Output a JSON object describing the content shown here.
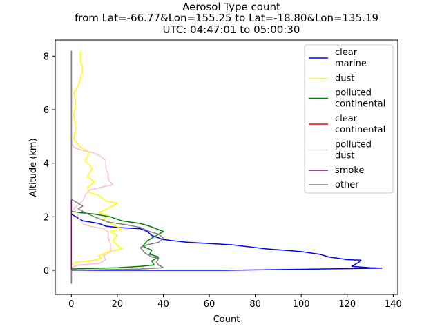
{
  "chart_data": {
    "type": "line",
    "title_lines": [
      "Aerosol Type count",
      "from Lat=-66.77&Lon=155.25 to Lat=-18.80&Lon=135.19",
      "UTC: 04:47:01 to 05:00:30"
    ],
    "xlabel": "Count",
    "ylabel": "Altitude (km)",
    "xlim": [
      -7,
      142
    ],
    "ylim": [
      -0.9,
      8.6
    ],
    "xticks": [
      0,
      20,
      40,
      60,
      80,
      100,
      120,
      140
    ],
    "yticks": [
      0,
      2,
      4,
      6,
      8
    ],
    "grid": false,
    "legend_position": "top-right",
    "series": [
      {
        "name": "clear\nmarine",
        "color": "#0000ff",
        "points": [
          [
            0,
            -0.5
          ],
          [
            0,
            0.0
          ],
          [
            67,
            0.0
          ],
          [
            135,
            0.08
          ],
          [
            130,
            0.1
          ],
          [
            122,
            0.15
          ],
          [
            125,
            0.3
          ],
          [
            126,
            0.38
          ],
          [
            120,
            0.4
          ],
          [
            112,
            0.5
          ],
          [
            108,
            0.6
          ],
          [
            100,
            0.7
          ],
          [
            85,
            0.8
          ],
          [
            70,
            0.95
          ],
          [
            50,
            1.05
          ],
          [
            40,
            1.15
          ],
          [
            35,
            1.3
          ],
          [
            33,
            1.45
          ],
          [
            30,
            1.55
          ],
          [
            20,
            1.6
          ],
          [
            15,
            1.65
          ],
          [
            12,
            1.75
          ],
          [
            5,
            1.85
          ],
          [
            2,
            2.0
          ],
          [
            0,
            2.1
          ],
          [
            0,
            8.2
          ]
        ]
      },
      {
        "name": "dust",
        "color": "#ffff00",
        "points": [
          [
            0,
            -0.5
          ],
          [
            0,
            0.2
          ],
          [
            2,
            0.3
          ],
          [
            8,
            0.35
          ],
          [
            13,
            0.45
          ],
          [
            12,
            0.55
          ],
          [
            16,
            0.7
          ],
          [
            22,
            0.8
          ],
          [
            20,
            0.95
          ],
          [
            18,
            1.1
          ],
          [
            20,
            1.3
          ],
          [
            17,
            1.45
          ],
          [
            22,
            1.55
          ],
          [
            17,
            1.75
          ],
          [
            14,
            1.9
          ],
          [
            16,
            2.05
          ],
          [
            12,
            2.15
          ],
          [
            20,
            2.5
          ],
          [
            15,
            2.6
          ],
          [
            12,
            2.8
          ],
          [
            8,
            2.9
          ],
          [
            7,
            3.1
          ],
          [
            10,
            3.3
          ],
          [
            7,
            3.5
          ],
          [
            9,
            3.8
          ],
          [
            6,
            4.1
          ],
          [
            8,
            4.4
          ],
          [
            4,
            4.6
          ],
          [
            1,
            4.9
          ],
          [
            2,
            5.3
          ],
          [
            1,
            5.8
          ],
          [
            2,
            6.3
          ],
          [
            1,
            6.6
          ],
          [
            3,
            6.9
          ],
          [
            4,
            7.2
          ],
          [
            5,
            7.5
          ],
          [
            4,
            7.8
          ],
          [
            4,
            8.2
          ]
        ]
      },
      {
        "name": "polluted\ncontinental",
        "color": "#008000",
        "points": [
          [
            0,
            -0.5
          ],
          [
            0,
            0.05
          ],
          [
            20,
            0.1
          ],
          [
            30,
            0.15
          ],
          [
            36,
            0.2
          ],
          [
            35,
            0.35
          ],
          [
            38,
            0.5
          ],
          [
            34,
            0.6
          ],
          [
            35,
            0.75
          ],
          [
            31,
            0.9
          ],
          [
            33,
            1.1
          ],
          [
            36,
            1.25
          ],
          [
            40,
            1.45
          ],
          [
            37,
            1.55
          ],
          [
            34,
            1.65
          ],
          [
            30,
            1.75
          ],
          [
            22,
            1.85
          ],
          [
            17,
            2.0
          ],
          [
            10,
            2.1
          ],
          [
            4,
            2.15
          ],
          [
            0,
            2.2
          ],
          [
            0,
            8.2
          ]
        ]
      },
      {
        "name": "clear\ncontinental",
        "color": "#ff0000",
        "points": [
          [
            0,
            -0.5
          ],
          [
            0,
            8.2
          ]
        ]
      },
      {
        "name": "polluted\ndust",
        "color": "#ffc0cb",
        "points": [
          [
            0,
            -0.5
          ],
          [
            0,
            0.1
          ],
          [
            3,
            0.2
          ],
          [
            12,
            0.25
          ],
          [
            15,
            0.4
          ],
          [
            14,
            0.55
          ],
          [
            17,
            0.7
          ],
          [
            17,
            1.0
          ],
          [
            16,
            1.2
          ],
          [
            16,
            1.45
          ],
          [
            14,
            1.55
          ],
          [
            8,
            1.65
          ],
          [
            5,
            1.75
          ],
          [
            4,
            1.85
          ],
          [
            3,
            2.0
          ],
          [
            2,
            2.2
          ],
          [
            1,
            2.3
          ],
          [
            5,
            2.6
          ],
          [
            6,
            2.8
          ],
          [
            8,
            3.0
          ],
          [
            18,
            3.2
          ],
          [
            16,
            3.4
          ],
          [
            16,
            3.6
          ],
          [
            15,
            3.8
          ],
          [
            15,
            4.1
          ],
          [
            12,
            4.3
          ],
          [
            9,
            4.4
          ],
          [
            4,
            4.5
          ],
          [
            1,
            4.6
          ],
          [
            0,
            4.8
          ],
          [
            0,
            8.2
          ]
        ]
      },
      {
        "name": "smoke",
        "color": "#800080",
        "points": [
          [
            0,
            -0.5
          ],
          [
            0,
            8.2
          ]
        ]
      },
      {
        "name": "other",
        "color": "#808080",
        "points": [
          [
            0,
            -0.5
          ],
          [
            0,
            0.0
          ],
          [
            30,
            0.05
          ],
          [
            40,
            0.1
          ],
          [
            38,
            0.2
          ],
          [
            37,
            0.3
          ],
          [
            38,
            0.45
          ],
          [
            35,
            0.5
          ],
          [
            32,
            0.65
          ],
          [
            30,
            0.85
          ],
          [
            33,
            0.95
          ],
          [
            38,
            1.05
          ],
          [
            40,
            1.2
          ],
          [
            38,
            1.35
          ],
          [
            34,
            1.45
          ],
          [
            30,
            1.6
          ],
          [
            24,
            1.7
          ],
          [
            16,
            1.8
          ],
          [
            13,
            1.9
          ],
          [
            10,
            2.0
          ],
          [
            6,
            2.15
          ],
          [
            3,
            2.3
          ],
          [
            5,
            2.4
          ],
          [
            2,
            2.55
          ],
          [
            0,
            2.65
          ],
          [
            0,
            8.2
          ]
        ]
      }
    ]
  }
}
